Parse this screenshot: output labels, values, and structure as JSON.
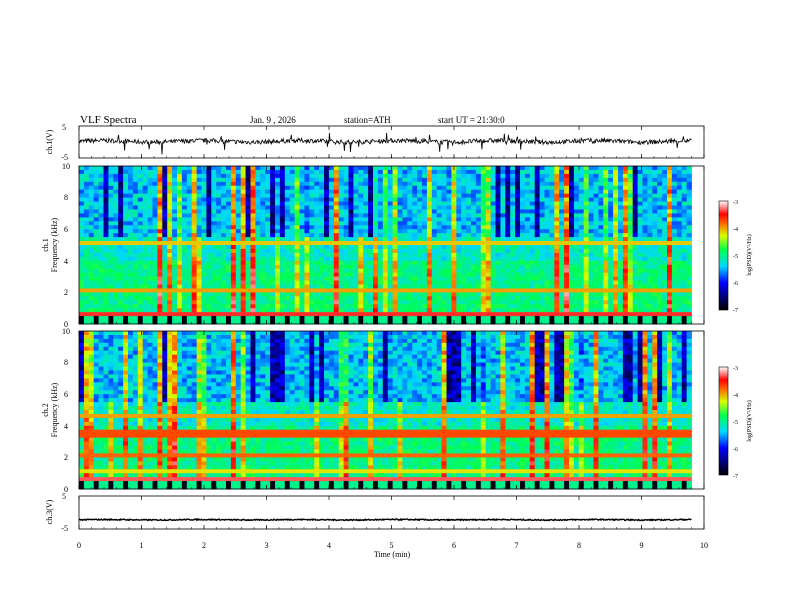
{
  "header": {
    "title": "VLF Spectra",
    "date": "Jan. 9 , 2026",
    "station": "station=ATH",
    "start": "start UT = 21:30:0"
  },
  "chart_data": [
    {
      "type": "line",
      "ylabel": "ch.1(V)",
      "ylim": [
        -5,
        5
      ],
      "yticks": [
        "5",
        "-5"
      ],
      "trace_level": 0.2,
      "trace_spread": 1.0
    },
    {
      "type": "heatmap",
      "ylabel_line1": "ch.1",
      "ylabel_line2": "Frequency (kHz)",
      "ylim": [
        0,
        10
      ],
      "yticks": [
        "0",
        "2",
        "4",
        "6",
        "8",
        "10"
      ],
      "colorbar": {
        "label": "log(PSD)(V²/Hz)",
        "range": [
          -7,
          -3
        ],
        "ticks": [
          "-3",
          "-4",
          "-5",
          "-6",
          "-7"
        ]
      }
    },
    {
      "type": "heatmap",
      "ylabel_line1": "ch.2",
      "ylabel_line2": "Frequency (kHz)",
      "ylim": [
        0,
        10
      ],
      "yticks": [
        "0",
        "2",
        "4",
        "6",
        "8",
        "10"
      ],
      "colorbar": {
        "label": "log(PSD)(V²/Hz)",
        "range": [
          -7,
          -3
        ],
        "ticks": [
          "-3",
          "-4",
          "-5",
          "-6",
          "-7"
        ]
      }
    },
    {
      "type": "line",
      "ylabel": "ch.3(V)",
      "ylim": [
        -5,
        5
      ],
      "yticks": [
        "5",
        "-5"
      ],
      "trace_level": -2.2,
      "trace_spread": 0.25
    }
  ],
  "xaxis": {
    "label": "Time (min)",
    "range": [
      0,
      10
    ],
    "data_end": 9.8,
    "ticks": [
      "0",
      "1",
      "2",
      "3",
      "4",
      "5",
      "6",
      "7",
      "8",
      "9",
      "10"
    ]
  }
}
